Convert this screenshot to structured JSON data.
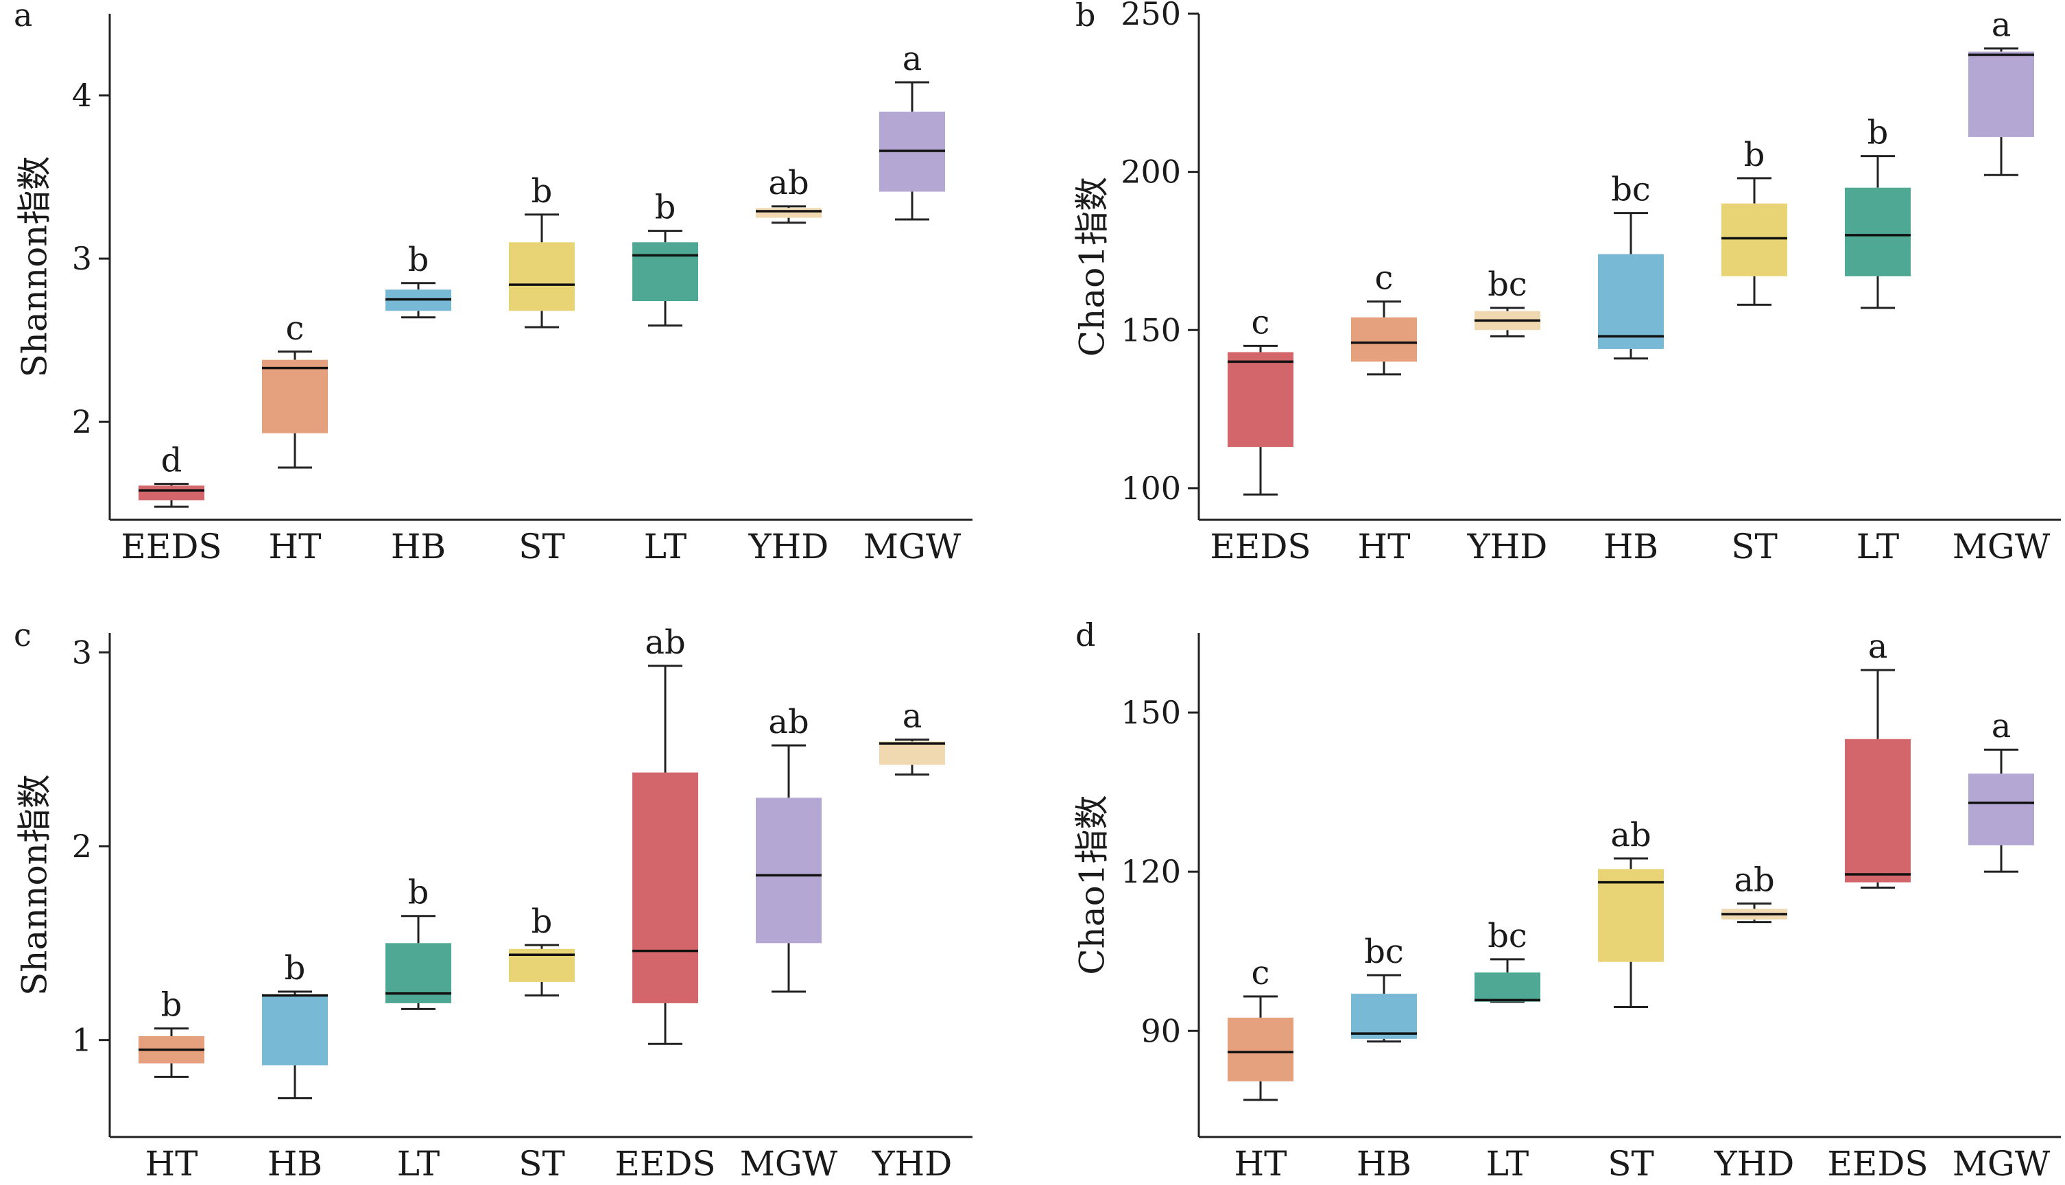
{
  "chart_data": [
    {
      "type": "box",
      "panel_label": "a",
      "ylabel": "Shannon指数",
      "ylim": [
        1.4,
        4.5
      ],
      "yticks": [
        2,
        3,
        4
      ],
      "categories": [
        "EEDS",
        "HT",
        "HB",
        "ST",
        "LT",
        "YHD",
        "MGW"
      ],
      "boxes": [
        {
          "min": 1.48,
          "q1": 1.52,
          "median": 1.58,
          "q3": 1.61,
          "max": 1.62,
          "letter": "d",
          "color": "#d2666a"
        },
        {
          "min": 1.72,
          "q1": 1.93,
          "median": 2.33,
          "q3": 2.38,
          "max": 2.43,
          "letter": "c",
          "color": "#e5a07d"
        },
        {
          "min": 2.64,
          "q1": 2.68,
          "median": 2.75,
          "q3": 2.81,
          "max": 2.85,
          "letter": "b",
          "color": "#78b9d6"
        },
        {
          "min": 2.58,
          "q1": 2.68,
          "median": 2.84,
          "q3": 3.1,
          "max": 3.27,
          "letter": "b",
          "color": "#e8d475"
        },
        {
          "min": 2.59,
          "q1": 2.74,
          "median": 3.02,
          "q3": 3.1,
          "max": 3.17,
          "letter": "b",
          "color": "#4ea893"
        },
        {
          "min": 3.22,
          "q1": 3.25,
          "median": 3.29,
          "q3": 3.31,
          "max": 3.32,
          "letter": "ab",
          "color": "#f0d9b0"
        },
        {
          "min": 3.24,
          "q1": 3.41,
          "median": 3.66,
          "q3": 3.9,
          "max": 4.08,
          "letter": "a",
          "color": "#b4a7d3"
        }
      ]
    },
    {
      "type": "box",
      "panel_label": "b",
      "ylabel": "Chao1指数",
      "ylim": [
        90,
        250
      ],
      "yticks": [
        100,
        150,
        200,
        250
      ],
      "categories": [
        "EEDS",
        "HT",
        "YHD",
        "HB",
        "ST",
        "LT",
        "MGW"
      ],
      "boxes": [
        {
          "min": 98,
          "q1": 113,
          "median": 140,
          "q3": 143,
          "max": 145,
          "letter": "c",
          "color": "#d2666a"
        },
        {
          "min": 136,
          "q1": 140,
          "median": 146,
          "q3": 154,
          "max": 159,
          "letter": "c",
          "color": "#e5a07d"
        },
        {
          "min": 148,
          "q1": 150,
          "median": 153,
          "q3": 156,
          "max": 157,
          "letter": "bc",
          "color": "#f0d9b0"
        },
        {
          "min": 141,
          "q1": 144,
          "median": 148,
          "q3": 174,
          "max": 187,
          "letter": "bc",
          "color": "#78b9d6"
        },
        {
          "min": 158,
          "q1": 167,
          "median": 179,
          "q3": 190,
          "max": 198,
          "letter": "b",
          "color": "#e8d475"
        },
        {
          "min": 157,
          "q1": 167,
          "median": 180,
          "q3": 195,
          "max": 205,
          "letter": "b",
          "color": "#4ea893"
        },
        {
          "min": 199,
          "q1": 211,
          "median": 237,
          "q3": 238,
          "max": 239,
          "letter": "a",
          "color": "#b4a7d3"
        }
      ]
    },
    {
      "type": "box",
      "panel_label": "c",
      "ylabel": "Shannon指数",
      "ylim": [
        0.5,
        3.1
      ],
      "yticks": [
        1,
        2,
        3
      ],
      "categories": [
        "HT",
        "HB",
        "LT",
        "ST",
        "EEDS",
        "MGW",
        "YHD"
      ],
      "boxes": [
        {
          "min": 0.81,
          "q1": 0.88,
          "median": 0.95,
          "q3": 1.02,
          "max": 1.06,
          "letter": "b",
          "color": "#e5a07d"
        },
        {
          "min": 0.7,
          "q1": 0.87,
          "median": 1.23,
          "q3": 1.23,
          "max": 1.25,
          "letter": "b",
          "color": "#78b9d6"
        },
        {
          "min": 1.16,
          "q1": 1.19,
          "median": 1.24,
          "q3": 1.5,
          "max": 1.64,
          "letter": "b",
          "color": "#4ea893"
        },
        {
          "min": 1.23,
          "q1": 1.3,
          "median": 1.44,
          "q3": 1.47,
          "max": 1.49,
          "letter": "b",
          "color": "#e8d475"
        },
        {
          "min": 0.98,
          "q1": 1.19,
          "median": 1.46,
          "q3": 2.38,
          "max": 2.93,
          "letter": "ab",
          "color": "#d2666a"
        },
        {
          "min": 1.25,
          "q1": 1.5,
          "median": 1.85,
          "q3": 2.25,
          "max": 2.52,
          "letter": "ab",
          "color": "#b4a7d3"
        },
        {
          "min": 2.37,
          "q1": 2.42,
          "median": 2.53,
          "q3": 2.54,
          "max": 2.55,
          "letter": "a",
          "color": "#f0d9b0"
        }
      ]
    },
    {
      "type": "box",
      "panel_label": "d",
      "ylabel": "Chao1指数",
      "ylim": [
        70,
        165
      ],
      "yticks": [
        90,
        120,
        150
      ],
      "categories": [
        "HT",
        "HB",
        "LT",
        "ST",
        "YHD",
        "EEDS",
        "MGW"
      ],
      "boxes": [
        {
          "min": 77,
          "q1": 80.5,
          "median": 86,
          "q3": 92.5,
          "max": 96.5,
          "letter": "c",
          "color": "#e5a07d"
        },
        {
          "min": 88,
          "q1": 88.5,
          "median": 89.5,
          "q3": 97,
          "max": 100.5,
          "letter": "bc",
          "color": "#78b9d6"
        },
        {
          "min": 95.5,
          "q1": 95.5,
          "median": 95.8,
          "q3": 101,
          "max": 103.5,
          "letter": "bc",
          "color": "#4ea893"
        },
        {
          "min": 94.5,
          "q1": 103,
          "median": 118,
          "q3": 120.5,
          "max": 122.5,
          "letter": "ab",
          "color": "#e8d475"
        },
        {
          "min": 110.5,
          "q1": 111,
          "median": 112,
          "q3": 113,
          "max": 114,
          "letter": "ab",
          "color": "#f0d9b0"
        },
        {
          "min": 117,
          "q1": 118,
          "median": 119.5,
          "q3": 145,
          "max": 158,
          "letter": "a",
          "color": "#d2666a"
        },
        {
          "min": 120,
          "q1": 125,
          "median": 133,
          "q3": 138.5,
          "max": 143,
          "letter": "a",
          "color": "#b4a7d3"
        }
      ]
    }
  ]
}
